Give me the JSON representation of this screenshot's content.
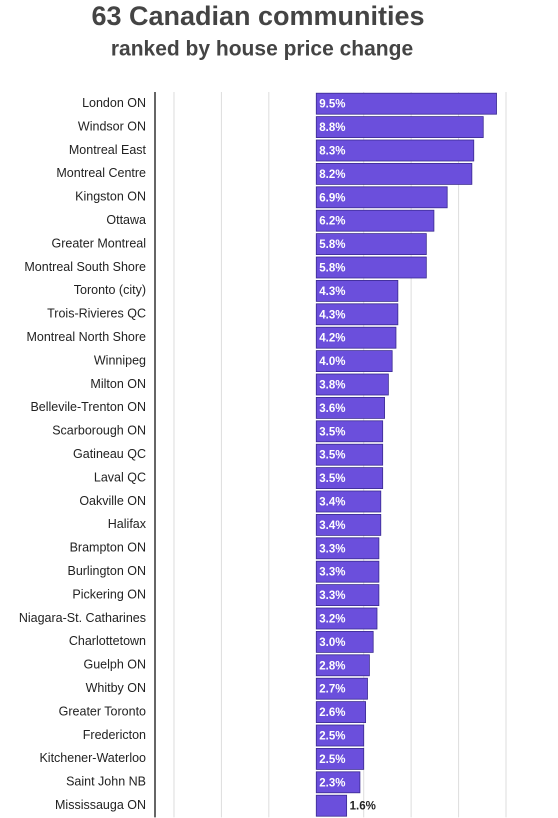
{
  "chart_data": {
    "type": "hbar",
    "title": "63 Canadian communities",
    "subtitle": "ranked by house price change",
    "categories": [
      "London ON",
      "Windsor ON",
      "Montreal East",
      "Montreal Centre",
      "Kingston ON",
      "Ottawa",
      "Greater Montreal",
      "Montreal South Shore",
      "Toronto (city)",
      "Trois-Rivieres QC",
      "Montreal North Shore",
      "Winnipeg",
      "Milton ON",
      "Bellevile-Trenton ON",
      "Scarborough ON",
      "Gatineau QC",
      "Laval QC",
      "Oakville ON",
      "Halifax",
      "Brampton ON",
      "Burlington ON",
      "Pickering ON",
      "Niagara-St. Catharines",
      "Charlottetown",
      "Guelph ON",
      "Whitby ON",
      "Greater Toronto",
      "Fredericton",
      "Kitchener-Waterloo",
      "Saint John NB",
      "Mississauga ON"
    ],
    "values": [
      9.5,
      8.8,
      8.3,
      8.2,
      6.9,
      6.2,
      5.8,
      5.8,
      4.3,
      4.3,
      4.2,
      4.0,
      3.8,
      3.6,
      3.5,
      3.5,
      3.5,
      3.4,
      3.4,
      3.3,
      3.3,
      3.3,
      3.2,
      3.0,
      2.8,
      2.7,
      2.6,
      2.5,
      2.5,
      2.3,
      1.6
    ],
    "value_labels": [
      "9.5%",
      "8.8%",
      "8.3%",
      "8.2%",
      "6.9%",
      "6.2%",
      "5.8%",
      "5.8%",
      "4.3%",
      "4.3%",
      "4.2%",
      "4.0%",
      "3.8%",
      "3.6%",
      "3.5%",
      "3.5%",
      "3.5%",
      "3.4%",
      "3.4%",
      "3.3%",
      "3.3%",
      "3.3%",
      "3.2%",
      "3.0%",
      "2.8%",
      "2.7%",
      "2.6%",
      "2.5%",
      "2.5%",
      "2.3%",
      "1.6%"
    ],
    "color": "#6b4fdc",
    "xlim": [
      -8.5,
      10.3
    ],
    "xticks": [
      -7.5,
      -5,
      -2.5,
      2.5,
      5,
      7.5,
      10
    ],
    "grid": true
  }
}
